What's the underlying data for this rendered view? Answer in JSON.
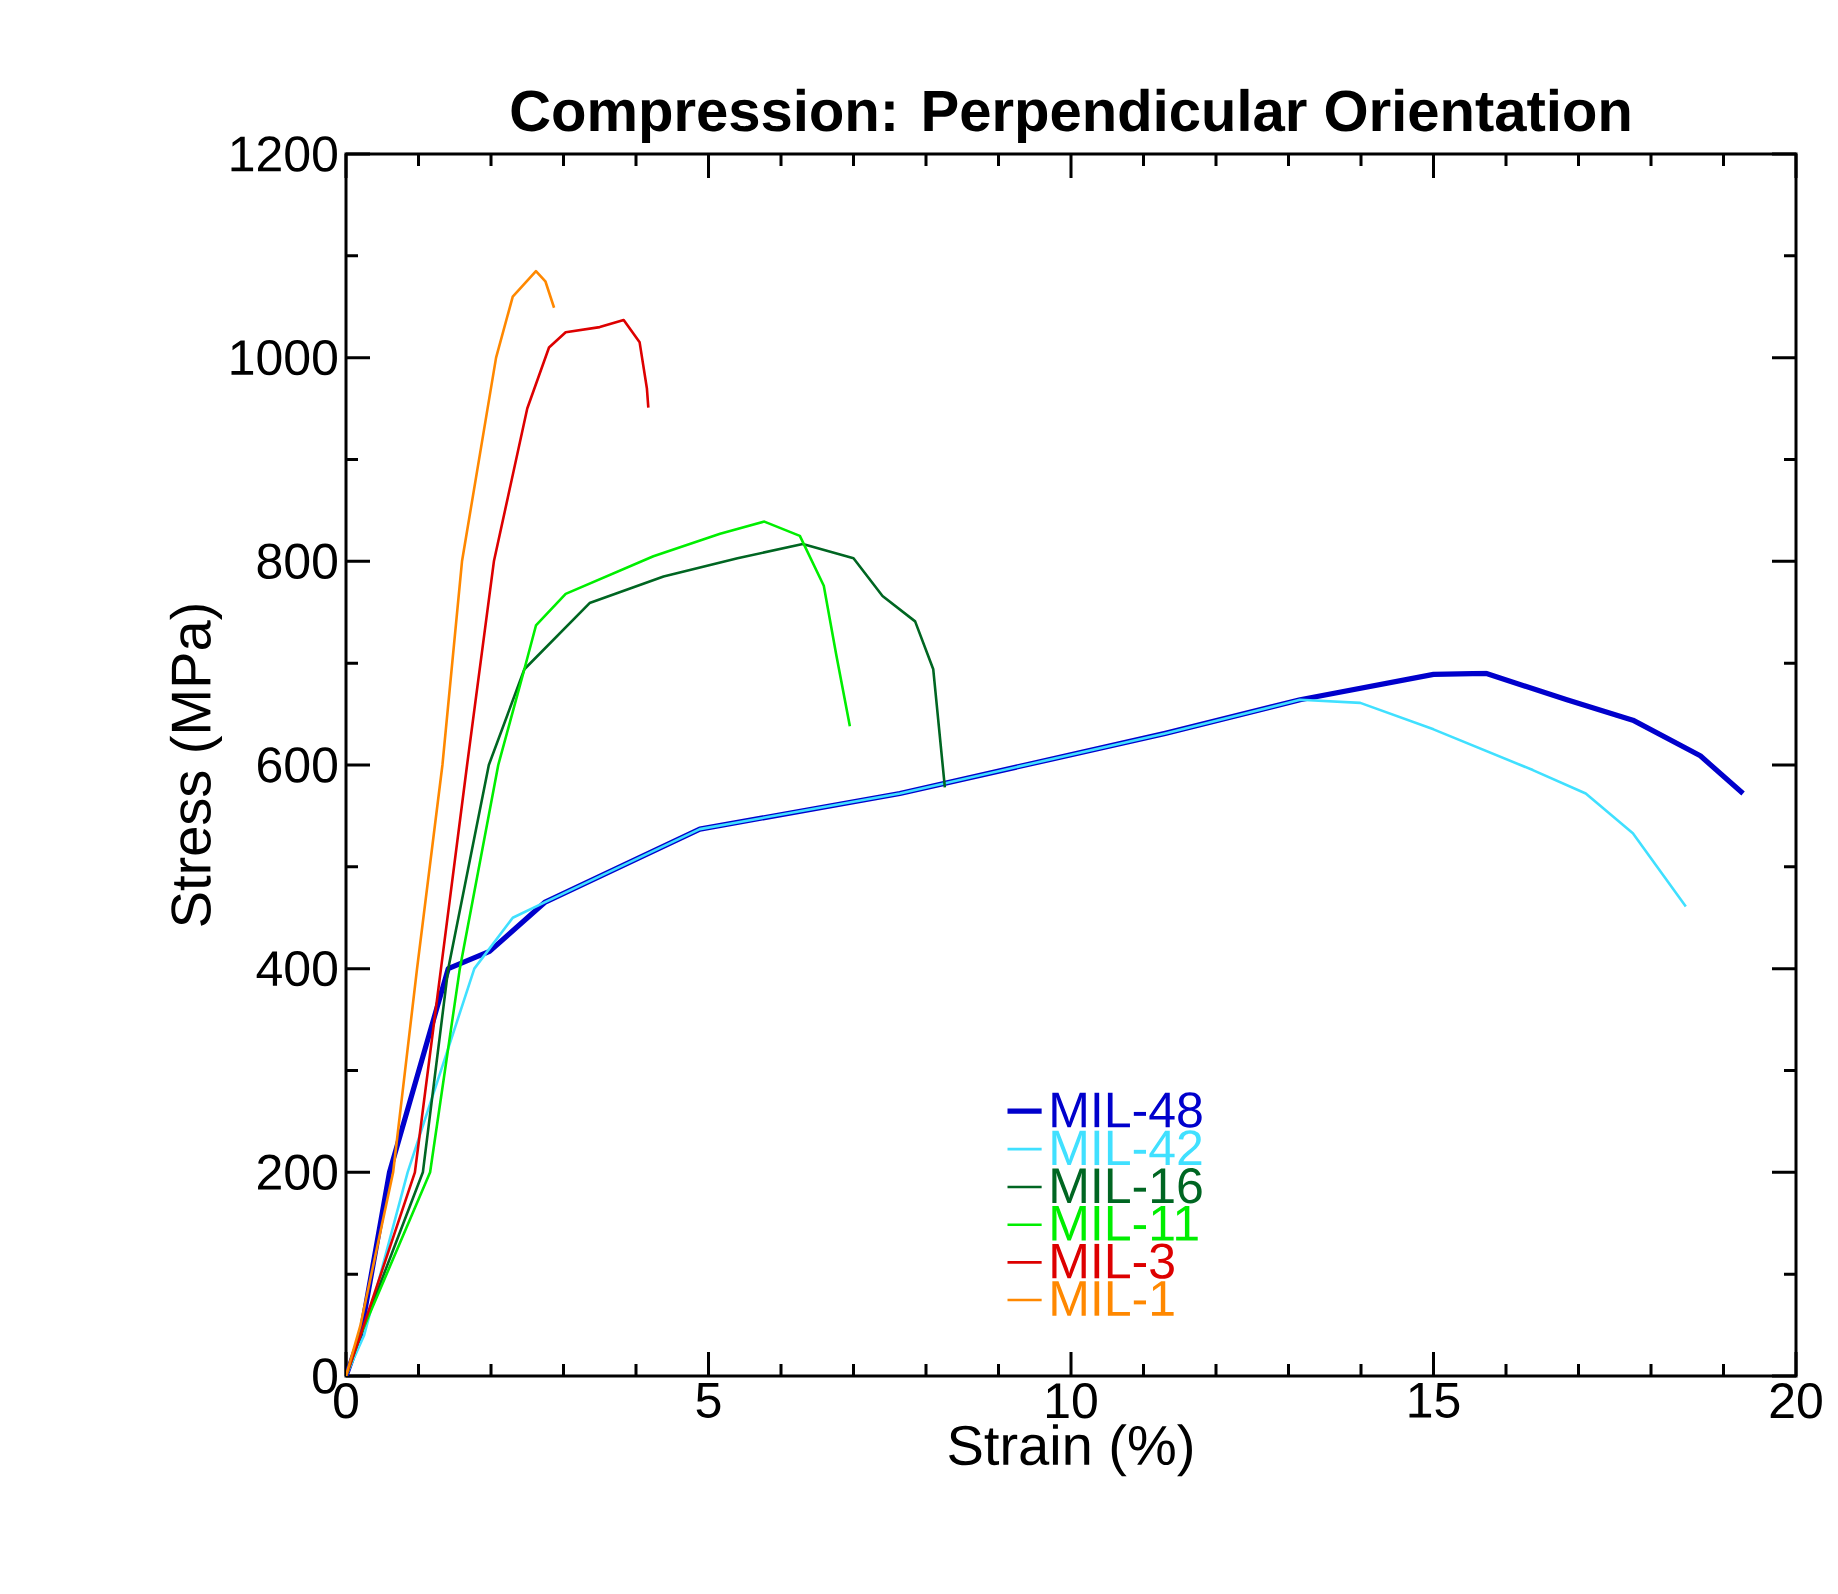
{
  "chart_data": {
    "type": "line",
    "title": "Compression: Perpendicular Orientation",
    "xlabel": "Strain (%)",
    "ylabel": "Stress (MPa)",
    "xlim": [
      0,
      20
    ],
    "ylim": [
      0,
      1200
    ],
    "xticks": [
      0,
      5,
      10,
      15,
      20
    ],
    "yticks": [
      0,
      200,
      400,
      600,
      800,
      1000,
      1200
    ],
    "grid": false,
    "legend": "bottom right",
    "marker": "none",
    "line_style": "solid",
    "series": [
      {
        "name": "MIL-48",
        "color": "#0000cc",
        "x": [
          0,
          0.2,
          0.6,
          1.41,
          1.98,
          2.74,
          4.88,
          7.64,
          11.3,
          13.16,
          15.0,
          15.72,
          16.84,
          17.75,
          18.68,
          19.27
        ],
        "values": [
          0,
          40,
          200,
          400,
          417,
          465,
          537,
          572,
          631,
          664,
          689,
          690,
          664,
          644,
          609,
          572
        ]
      },
      {
        "name": "MIL-42",
        "color": "#40e0ff",
        "x": [
          0,
          0.25,
          0.85,
          1.77,
          2.3,
          2.74,
          4.88,
          7.64,
          11.3,
          13.16,
          13.99,
          15.0,
          16.37,
          17.1,
          17.75,
          18.48
        ],
        "values": [
          0,
          40,
          200,
          400,
          450,
          465,
          537,
          572,
          631,
          664,
          661,
          635,
          595,
          572,
          533,
          461
        ]
      },
      {
        "name": "MIL-16",
        "color": "#006622",
        "x": [
          0,
          0.2,
          1.06,
          1.41,
          1.97,
          2.46,
          3.36,
          4.38,
          5.4,
          6.3,
          7.0,
          7.4,
          7.85,
          8.1,
          8.26
        ],
        "values": [
          0,
          40,
          200,
          400,
          600,
          694,
          759,
          785,
          803,
          817,
          803,
          766,
          741,
          694,
          578
        ]
      },
      {
        "name": "MIL-11",
        "color": "#00ee00",
        "x": [
          0,
          0.2,
          1.16,
          1.57,
          2.1,
          2.46,
          2.62,
          3.03,
          4.24,
          5.16,
          5.77,
          6.26,
          6.59,
          6.76,
          6.95
        ],
        "values": [
          0,
          40,
          200,
          400,
          600,
          694,
          737,
          768,
          805,
          827,
          839,
          825,
          776,
          709,
          638
        ]
      },
      {
        "name": "MIL-3",
        "color": "#dd0000",
        "x": [
          0,
          0.2,
          0.95,
          1.31,
          1.67,
          2.04,
          2.5,
          2.8,
          3.03,
          3.5,
          3.83,
          4.05,
          4.15,
          4.17
        ],
        "values": [
          0,
          40,
          200,
          400,
          600,
          800,
          950,
          1010,
          1025,
          1030,
          1037,
          1015,
          970,
          951
        ]
      },
      {
        "name": "MIL-1",
        "color": "#ff8800",
        "x": [
          0,
          0.2,
          0.65,
          0.98,
          1.33,
          1.6,
          2.07,
          2.3,
          2.62,
          2.75,
          2.87
        ],
        "values": [
          0,
          50,
          200,
          400,
          600,
          800,
          1000,
          1060,
          1085,
          1075,
          1049
        ]
      }
    ]
  }
}
